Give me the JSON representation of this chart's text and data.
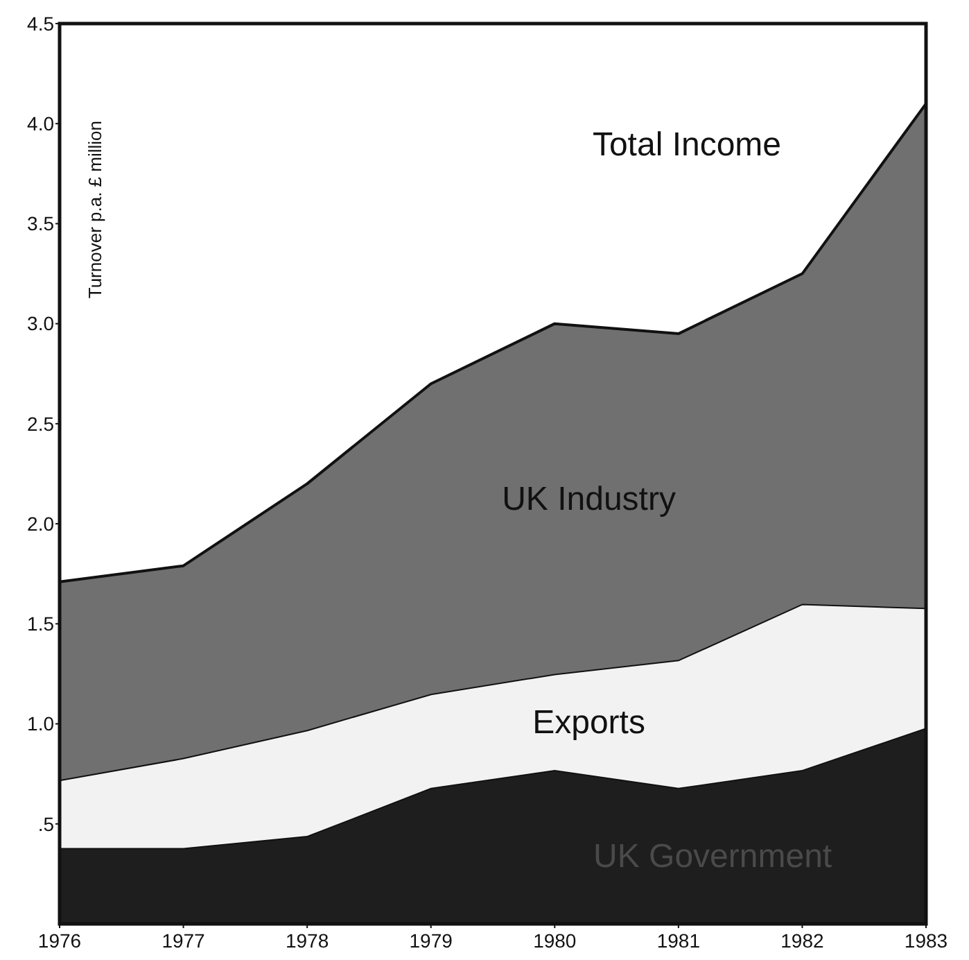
{
  "chart_data": {
    "type": "area",
    "stacked": true,
    "ylabel": "Turnover p.a. £ million",
    "x": [
      1976,
      1977,
      1978,
      1979,
      1980,
      1981,
      1982,
      1983
    ],
    "series": [
      {
        "name": "UK Government",
        "color": "#1e1e1e",
        "values": [
          0.38,
          0.38,
          0.44,
          0.68,
          0.77,
          0.68,
          0.77,
          0.98
        ]
      },
      {
        "name": "Exports",
        "color": "#f2f2f2",
        "values": [
          0.34,
          0.45,
          0.53,
          0.47,
          0.48,
          0.64,
          0.83,
          0.6
        ]
      },
      {
        "name": "UK Industry",
        "color": "#707070",
        "values": [
          0.99,
          0.96,
          1.23,
          1.55,
          1.75,
          1.63,
          1.65,
          2.52
        ]
      }
    ],
    "annotations": [
      "Total Income"
    ],
    "xlim": [
      1976,
      1983
    ],
    "xticks": [
      1976,
      1977,
      1978,
      1979,
      1980,
      1981,
      1982,
      1983
    ],
    "ylim": [
      0,
      4.5
    ],
    "yticks": [
      {
        "value": 0.5,
        "label": ".5"
      },
      {
        "value": 1,
        "label": "1.0"
      },
      1.5,
      {
        "value": 2,
        "label": "2.0"
      },
      2.5,
      {
        "value": 3,
        "label": "3.0"
      },
      3.5,
      {
        "value": 4,
        "label": "4.0"
      },
      4.5
    ],
    "grid": false
  }
}
